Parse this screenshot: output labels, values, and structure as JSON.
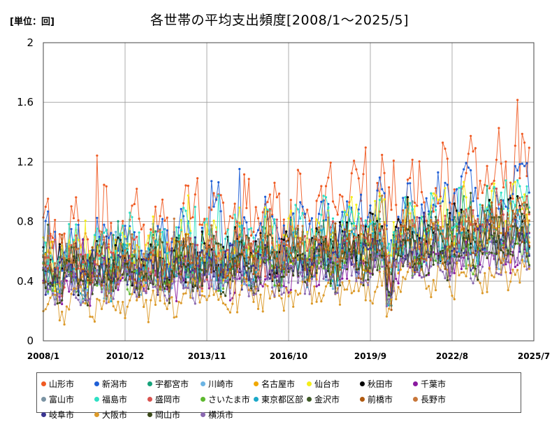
{
  "header": {
    "unit": "[単位：回]",
    "title": "各世帯の平均支出頻度[2008/1～2025/5]"
  },
  "chart_data": {
    "type": "line",
    "ylim": [
      0,
      2
    ],
    "yticks": [
      "0",
      "0.4",
      "0.8",
      "1.2",
      "1.6",
      "2"
    ],
    "x_start": "2008/1",
    "x_end": "2025/7",
    "xticks": [
      "2008/1",
      "2010/12",
      "2013/11",
      "2016/10",
      "2019/9",
      "2022/8",
      "2025/7"
    ],
    "grid": true,
    "legend_position": "bottom",
    "series": [
      {
        "name": "山形市",
        "color": "#f05a22",
        "base": 0.7,
        "trend": 0.45,
        "amp": 0.26,
        "phase": 0.3
      },
      {
        "name": "新潟市",
        "color": "#1f5fd6",
        "base": 0.62,
        "trend": 0.4,
        "amp": 0.22,
        "phase": 1.1
      },
      {
        "name": "宇都宮市",
        "color": "#16a27a",
        "base": 0.5,
        "trend": 0.28,
        "amp": 0.16,
        "phase": 2.0
      },
      {
        "name": "川崎市",
        "color": "#6cb4e4",
        "base": 0.42,
        "trend": 0.24,
        "amp": 0.14,
        "phase": 2.7
      },
      {
        "name": "名古屋市",
        "color": "#f0a800",
        "base": 0.48,
        "trend": 0.26,
        "amp": 0.16,
        "phase": 0.9
      },
      {
        "name": "仙台市",
        "color": "#f4ee1a",
        "base": 0.56,
        "trend": 0.34,
        "amp": 0.2,
        "phase": 1.7
      },
      {
        "name": "秋田市",
        "color": "#000000",
        "base": 0.5,
        "trend": 0.32,
        "amp": 0.16,
        "phase": 3.1
      },
      {
        "name": "千葉市",
        "color": "#8a1aa0",
        "base": 0.4,
        "trend": 0.22,
        "amp": 0.14,
        "phase": 0.5
      },
      {
        "name": "富山市",
        "color": "#7a93a3",
        "base": 0.48,
        "trend": 0.26,
        "amp": 0.16,
        "phase": 2.3
      },
      {
        "name": "福島市",
        "color": "#2ee0c4",
        "base": 0.6,
        "trend": 0.3,
        "amp": 0.2,
        "phase": 1.4
      },
      {
        "name": "盛岡市",
        "color": "#d9534f",
        "base": 0.5,
        "trend": 0.28,
        "amp": 0.16,
        "phase": 0.2
      },
      {
        "name": "さいたま市",
        "color": "#5db82e",
        "base": 0.42,
        "trend": 0.24,
        "amp": 0.14,
        "phase": 2.9
      },
      {
        "name": "東京都区部",
        "color": "#1ba8c8",
        "base": 0.46,
        "trend": 0.26,
        "amp": 0.16,
        "phase": 1.9
      },
      {
        "name": "金沢市",
        "color": "#3f5a28",
        "base": 0.48,
        "trend": 0.26,
        "amp": 0.15,
        "phase": 0.7
      },
      {
        "name": "前橋市",
        "color": "#b05a10",
        "base": 0.46,
        "trend": 0.26,
        "amp": 0.15,
        "phase": 2.5
      },
      {
        "name": "長野市",
        "color": "#c8773a",
        "base": 0.52,
        "trend": 0.28,
        "amp": 0.17,
        "phase": 1.3
      },
      {
        "name": "岐阜市",
        "color": "#3a3590",
        "base": 0.44,
        "trend": 0.24,
        "amp": 0.14,
        "phase": 3.3
      },
      {
        "name": "大阪市",
        "color": "#dc9a2a",
        "base": 0.26,
        "trend": 0.22,
        "amp": 0.12,
        "phase": 0.1
      },
      {
        "name": "岡山市",
        "color": "#3b4a1a",
        "base": 0.4,
        "trend": 0.22,
        "amp": 0.14,
        "phase": 1.6
      },
      {
        "name": "横浜市",
        "color": "#8a68b0",
        "base": 0.36,
        "trend": 0.2,
        "amp": 0.12,
        "phase": 2.1
      }
    ]
  }
}
